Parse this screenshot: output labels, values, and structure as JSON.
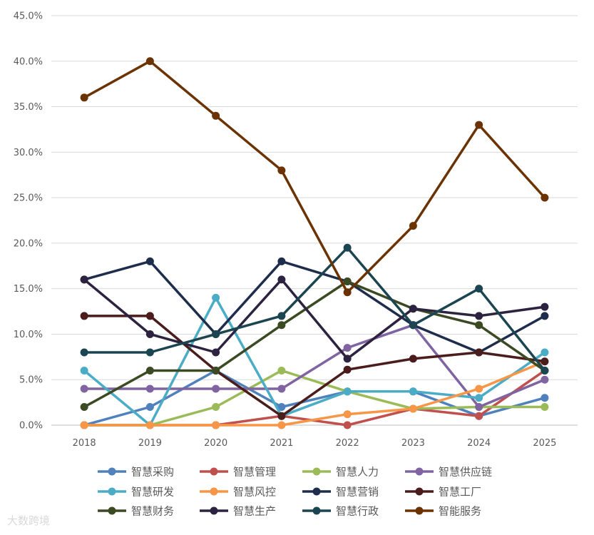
{
  "watermark": "大数跨境",
  "chart_data": {
    "type": "line",
    "title": "",
    "xlabel": "",
    "ylabel": "",
    "ylim": [
      0,
      0.45
    ],
    "y_format": "percent_1dp",
    "y_ticks": [
      0,
      0.05,
      0.1,
      0.15,
      0.2,
      0.25,
      0.3,
      0.35,
      0.4,
      0.45
    ],
    "grid": "horizontal",
    "legend_position": "bottom",
    "categories": [
      "2018",
      "2019",
      "2020",
      "2021",
      "2022",
      "2023",
      "2024",
      "2025"
    ],
    "series": [
      {
        "name": "智慧采购",
        "color": "#4f81bd",
        "values": [
          0.0,
          0.02,
          0.06,
          0.02,
          0.037,
          0.037,
          0.01,
          0.03
        ]
      },
      {
        "name": "智慧管理",
        "color": "#c0504d",
        "values": [
          0.0,
          0.0,
          0.0,
          0.01,
          0.0,
          0.018,
          0.01,
          0.06
        ]
      },
      {
        "name": "智慧人力",
        "color": "#9bbb59",
        "values": [
          0.0,
          0.0,
          0.02,
          0.06,
          0.037,
          0.018,
          0.02,
          0.02
        ]
      },
      {
        "name": "智慧供应链",
        "color": "#8064a2",
        "values": [
          0.04,
          0.04,
          0.04,
          0.04,
          0.085,
          0.11,
          0.02,
          0.05
        ]
      },
      {
        "name": "智慧研发",
        "color": "#4bacc6",
        "values": [
          0.06,
          0.0,
          0.14,
          0.01,
          0.037,
          0.037,
          0.03,
          0.08
        ]
      },
      {
        "name": "智慧风控",
        "color": "#f79646",
        "values": [
          0.0,
          0.0,
          0.0,
          0.0,
          0.012,
          0.018,
          0.04,
          0.07
        ]
      },
      {
        "name": "智慧营销",
        "color": "#1f2d4d",
        "values": [
          0.16,
          0.18,
          0.1,
          0.18,
          0.158,
          0.11,
          0.08,
          0.12
        ]
      },
      {
        "name": "智慧工厂",
        "color": "#4a1c1c",
        "values": [
          0.12,
          0.12,
          0.06,
          0.01,
          0.061,
          0.073,
          0.08,
          0.07
        ]
      },
      {
        "name": "智慧财务",
        "color": "#3b4a22",
        "values": [
          0.02,
          0.06,
          0.06,
          0.11,
          0.158,
          0.128,
          0.11,
          0.06
        ]
      },
      {
        "name": "智慧生产",
        "color": "#2d2340",
        "values": [
          0.16,
          0.1,
          0.08,
          0.16,
          0.073,
          0.128,
          0.12,
          0.13
        ]
      },
      {
        "name": "智慧行政",
        "color": "#1b4550",
        "values": [
          0.08,
          0.08,
          0.1,
          0.12,
          0.195,
          0.11,
          0.15,
          0.06
        ]
      },
      {
        "name": "智能服务",
        "color": "#6b3303",
        "values": [
          0.36,
          0.4,
          0.34,
          0.28,
          0.146,
          0.219,
          0.33,
          0.25
        ]
      }
    ]
  }
}
